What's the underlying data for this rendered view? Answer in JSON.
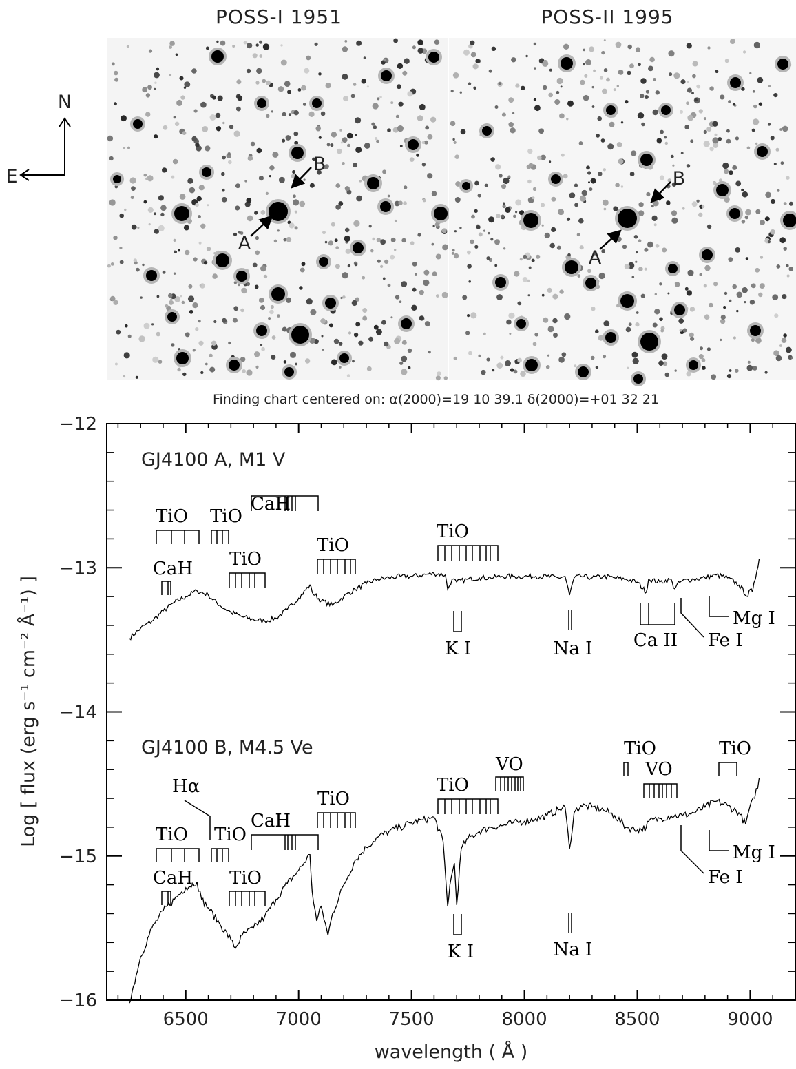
{
  "figure": {
    "panel_titles": [
      "POSS-I  1951",
      "POSS-II 1995"
    ],
    "compass": {
      "north": "N",
      "east": "E"
    },
    "markers": {
      "a": "A",
      "b": "B"
    },
    "caption": "Finding chart centered on:  α(2000)=19 10 39.1  δ(2000)=+01 32 21"
  },
  "chart_data": {
    "type": "line",
    "xlabel": "wavelength ( Å )",
    "ylabel": "Log [ flux (erg s⁻¹ cm⁻² Å⁻¹) ]",
    "xlim": [
      6150,
      9200
    ],
    "ylim": [
      -16,
      -12
    ],
    "xticks": [
      6500,
      7000,
      7500,
      8000,
      8500,
      9000
    ],
    "yticks": [
      -12,
      -13,
      -14,
      -15,
      -16
    ],
    "xtick_labels": [
      "6500",
      "7000",
      "7500",
      "8000",
      "8500",
      "9000"
    ],
    "ytick_labels": [
      "−12",
      "−13",
      "−14",
      "−15",
      "−16"
    ],
    "series": [
      {
        "name": "GJ4100 A, M1 V",
        "x": [
          6250,
          6300,
          6350,
          6400,
          6450,
          6500,
          6550,
          6600,
          6650,
          6700,
          6750,
          6800,
          6850,
          6900,
          6950,
          7000,
          7050,
          7060,
          7100,
          7150,
          7200,
          7250,
          7300,
          7350,
          7400,
          7450,
          7500,
          7550,
          7600,
          7650,
          7660,
          7680,
          7700,
          7750,
          7800,
          7850,
          7900,
          7950,
          8000,
          8050,
          8100,
          8150,
          8180,
          8200,
          8220,
          8250,
          8300,
          8350,
          8400,
          8450,
          8500,
          8540,
          8550,
          8600,
          8650,
          8660,
          8700,
          8750,
          8800,
          8850,
          8900,
          8950,
          8990,
          9000,
          9010,
          9030,
          9040
        ],
        "values": [
          -13.49,
          -13.42,
          -13.37,
          -13.3,
          -13.24,
          -13.2,
          -13.16,
          -13.19,
          -13.26,
          -13.31,
          -13.34,
          -13.36,
          -13.37,
          -13.35,
          -13.29,
          -13.21,
          -13.12,
          -13.17,
          -13.23,
          -13.26,
          -13.2,
          -13.15,
          -13.11,
          -13.08,
          -13.07,
          -13.06,
          -13.06,
          -13.05,
          -13.04,
          -13.05,
          -13.15,
          -13.08,
          -13.1,
          -13.08,
          -13.07,
          -13.07,
          -13.06,
          -13.06,
          -13.06,
          -13.06,
          -13.06,
          -13.07,
          -13.06,
          -13.19,
          -13.07,
          -13.06,
          -13.07,
          -13.06,
          -13.07,
          -13.08,
          -13.1,
          -13.17,
          -13.08,
          -13.1,
          -13.08,
          -13.14,
          -13.09,
          -13.08,
          -13.07,
          -13.05,
          -13.07,
          -13.12,
          -13.2,
          -13.15,
          -13.17,
          -13.02,
          -12.94
        ]
      },
      {
        "name": "GJ4100 B, M4.5 Ve",
        "x": [
          6250,
          6280,
          6300,
          6350,
          6400,
          6450,
          6500,
          6550,
          6570,
          6600,
          6650,
          6700,
          6720,
          6750,
          6800,
          6850,
          6900,
          6950,
          7000,
          7050,
          7060,
          7080,
          7100,
          7130,
          7150,
          7200,
          7250,
          7300,
          7350,
          7400,
          7450,
          7500,
          7550,
          7580,
          7600,
          7640,
          7660,
          7670,
          7690,
          7700,
          7720,
          7750,
          7800,
          7850,
          7900,
          7950,
          8000,
          8050,
          8100,
          8150,
          8180,
          8200,
          8220,
          8250,
          8300,
          8350,
          8400,
          8450,
          8500,
          8540,
          8550,
          8600,
          8650,
          8700,
          8750,
          8800,
          8850,
          8900,
          8950,
          8980,
          9000,
          9020,
          9040
        ],
        "values": [
          -16.02,
          -15.83,
          -15.7,
          -15.5,
          -15.38,
          -15.3,
          -15.22,
          -15.18,
          -15.3,
          -15.36,
          -15.47,
          -15.58,
          -15.64,
          -15.55,
          -15.5,
          -15.42,
          -15.3,
          -15.19,
          -15.1,
          -14.99,
          -15.25,
          -15.45,
          -15.35,
          -15.55,
          -15.4,
          -15.2,
          -15.03,
          -14.94,
          -14.87,
          -14.83,
          -14.8,
          -14.77,
          -14.75,
          -14.74,
          -14.73,
          -14.9,
          -15.35,
          -15.2,
          -15.05,
          -15.34,
          -14.95,
          -14.88,
          -14.83,
          -14.8,
          -14.79,
          -14.77,
          -14.76,
          -14.74,
          -14.72,
          -14.68,
          -14.66,
          -14.95,
          -14.7,
          -14.65,
          -14.66,
          -14.68,
          -14.72,
          -14.8,
          -14.82,
          -14.8,
          -14.76,
          -14.74,
          -14.72,
          -14.72,
          -14.7,
          -14.66,
          -14.62,
          -14.65,
          -14.7,
          -14.78,
          -14.65,
          -14.6,
          -14.46
        ]
      }
    ],
    "annotations": {
      "panel_a": {
        "label": "GJ4100 A, M1 V",
        "features": [
          "TiO",
          "TiO",
          "CaH",
          "TiO",
          "TiO",
          "CaH",
          "TiO",
          "K I",
          "Na I",
          "Ca II",
          "Fe I",
          "Mg I"
        ]
      },
      "panel_b": {
        "label": "GJ4100 B, M4.5 Ve",
        "features": [
          "Hα",
          "TiO",
          "TiO",
          "CaH",
          "TiO",
          "CaH",
          "TiO",
          "TiO",
          "VO",
          "TiO",
          "VO",
          "TiO",
          "K I",
          "Na I",
          "Fe I",
          "Mg I"
        ]
      }
    }
  }
}
